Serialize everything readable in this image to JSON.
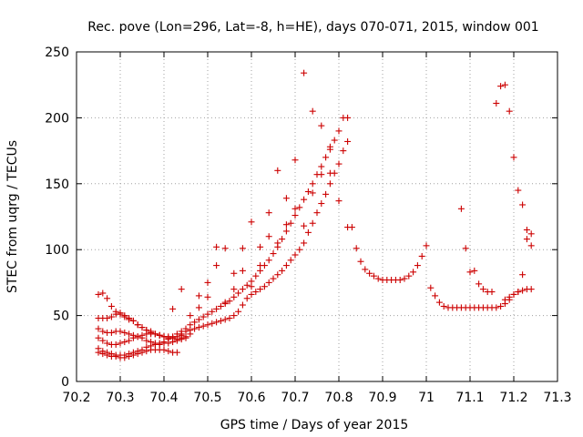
{
  "chart_data": {
    "type": "scatter",
    "title": "Rec. pove (Lon=296, Lat=-8, h=HE), days 070-071, 2015, window 001",
    "xlabel": "GPS time / Days of year 2015",
    "ylabel": "STEC from uqrg / TECUs",
    "xlim": [
      70.2,
      71.3
    ],
    "ylim": [
      0,
      250
    ],
    "xticks": [
      "70.2",
      "70.3",
      "70.4",
      "70.5",
      "70.6",
      "70.7",
      "70.8",
      "70.9",
      "71",
      "71.1",
      "71.2",
      "71.3"
    ],
    "yticks": [
      "0",
      "50",
      "100",
      "150",
      "200",
      "250"
    ],
    "grid": true,
    "marker": "plus",
    "color": "#cc0000",
    "series": [
      {
        "x": [
          70.25,
          70.26,
          70.27,
          70.28,
          70.29,
          70.3,
          70.31,
          70.32,
          70.33,
          70.34,
          70.35,
          70.36,
          70.37,
          70.38,
          70.39,
          70.4,
          70.41,
          70.42,
          70.43,
          70.44
        ],
        "y": [
          66,
          67,
          63,
          57,
          53,
          51,
          49,
          47,
          46,
          43,
          41,
          39,
          37,
          36,
          35,
          34,
          33,
          33,
          34,
          35
        ]
      },
      {
        "x": [
          70.25,
          70.26,
          70.27,
          70.28,
          70.29,
          70.3,
          70.31,
          70.32,
          70.33,
          70.34,
          70.35,
          70.36,
          70.37,
          70.38,
          70.39,
          70.4,
          70.41,
          70.42,
          70.43,
          70.44,
          70.45,
          70.46
        ],
        "y": [
          25,
          23,
          22,
          21,
          20,
          20,
          20,
          21,
          22,
          23,
          24,
          26,
          27,
          28,
          28,
          29,
          29,
          30,
          31,
          33,
          34,
          36
        ]
      },
      {
        "x": [
          70.25,
          70.26,
          70.27,
          70.28,
          70.29,
          70.3,
          70.31,
          70.32,
          70.33,
          70.34,
          70.35,
          70.36,
          70.37,
          70.38,
          70.39,
          70.4,
          70.41,
          70.42,
          70.43,
          70.44,
          70.45
        ],
        "y": [
          33,
          31,
          29,
          28,
          28,
          29,
          30,
          31,
          33,
          34,
          35,
          36,
          36,
          36,
          35,
          34,
          34,
          33,
          32,
          32,
          33
        ]
      },
      {
        "x": [
          70.25,
          70.26,
          70.27,
          70.28,
          70.29,
          70.3,
          70.31,
          70.32,
          70.33,
          70.34,
          70.35,
          70.36,
          70.37,
          70.38,
          70.39,
          70.4
        ],
        "y": [
          48,
          48,
          48,
          49,
          51,
          52,
          50,
          48,
          46,
          43,
          41,
          39,
          38,
          36,
          35,
          34
        ]
      },
      {
        "x": [
          70.25,
          70.26,
          70.27,
          70.28,
          70.29,
          70.3,
          70.31,
          70.32,
          70.33,
          70.34,
          70.35,
          70.36,
          70.37,
          70.38,
          70.39
        ],
        "y": [
          40,
          38,
          37,
          37,
          38,
          38,
          37,
          36,
          35,
          34,
          33,
          31,
          30,
          29,
          29
        ]
      },
      {
        "x": [
          70.25,
          70.26,
          70.27,
          70.28,
          70.29,
          70.3,
          70.31,
          70.32,
          70.33,
          70.34,
          70.35,
          70.36,
          70.37,
          70.38,
          70.39,
          70.4,
          70.41,
          70.42,
          70.43
        ],
        "y": [
          22,
          21,
          20,
          19,
          19,
          18,
          18,
          19,
          20,
          21,
          22,
          23,
          24,
          24,
          24,
          24,
          23,
          22,
          22
        ]
      },
      {
        "x": [
          70.44,
          70.45,
          70.46,
          70.47,
          70.48,
          70.49,
          70.5,
          70.51,
          70.52,
          70.53,
          70.54,
          70.55,
          70.56,
          70.57,
          70.58,
          70.59,
          70.6,
          70.61,
          70.62,
          70.63,
          70.64,
          70.65,
          70.66,
          70.67,
          70.68,
          70.69,
          70.7,
          70.71,
          70.72,
          70.73,
          70.74,
          70.75,
          70.76,
          70.77,
          70.78,
          70.79,
          70.8,
          70.81,
          70.82
        ],
        "y": [
          36,
          38,
          39,
          40,
          41,
          42,
          43,
          44,
          45,
          46,
          47,
          48,
          50,
          53,
          58,
          63,
          66,
          68,
          70,
          72,
          75,
          78,
          81,
          84,
          88,
          92,
          96,
          100,
          105,
          113,
          120,
          128,
          135,
          142,
          150,
          158,
          165,
          175,
          182
        ]
      },
      {
        "x": [
          70.4,
          70.41,
          70.42,
          70.43,
          70.44,
          70.45,
          70.46,
          70.47,
          70.48,
          70.49,
          70.5,
          70.51,
          70.52,
          70.53,
          70.54,
          70.55,
          70.56,
          70.57,
          70.58,
          70.59,
          70.6,
          70.61,
          70.62,
          70.63,
          70.64,
          70.65,
          70.66,
          70.67,
          70.68,
          70.69,
          70.7,
          70.71,
          70.72,
          70.73,
          70.74,
          70.75,
          70.76,
          70.77,
          70.78,
          70.79,
          70.8,
          70.81
        ],
        "y": [
          30,
          32,
          34,
          36,
          38,
          40,
          43,
          45,
          47,
          49,
          51,
          53,
          55,
          57,
          59,
          61,
          64,
          67,
          70,
          73,
          76,
          80,
          84,
          88,
          92,
          97,
          102,
          108,
          114,
          120,
          126,
          132,
          138,
          144,
          150,
          157,
          163,
          170,
          176,
          183,
          190,
          200
        ]
      },
      {
        "x": [
          70.42,
          70.44,
          70.46,
          70.48,
          70.5,
          70.52,
          70.54,
          70.56,
          70.58,
          70.6,
          70.62,
          70.64,
          70.66,
          70.68,
          70.7,
          70.72,
          70.74,
          70.76,
          70.78
        ],
        "y": [
          55,
          70,
          50,
          56,
          75,
          102,
          101,
          82,
          101,
          121,
          102,
          128,
          105,
          139,
          168,
          234,
          205,
          157,
          158
        ]
      },
      {
        "x": [
          70.48,
          70.5,
          70.52,
          70.54,
          70.56,
          70.58,
          70.6,
          70.62,
          70.64,
          70.66,
          70.68,
          70.7,
          70.72,
          70.74,
          70.76,
          70.78,
          70.8,
          70.82
        ],
        "y": [
          65,
          64,
          88,
          60,
          70,
          84,
          72,
          88,
          110,
          160,
          119,
          131,
          118,
          143,
          194,
          178,
          137,
          117
        ]
      },
      {
        "x": [
          70.82,
          70.83,
          70.84,
          70.85,
          70.86,
          70.87,
          70.88,
          70.89,
          70.9,
          70.91,
          70.92,
          70.93,
          70.94,
          70.95,
          70.96,
          70.97,
          70.98,
          70.99,
          71.0,
          71.01,
          71.02,
          71.03,
          71.04,
          71.05,
          71.06,
          71.07,
          71.08,
          71.09,
          71.1,
          71.11,
          71.12,
          71.13,
          71.14,
          71.15,
          71.16,
          71.17,
          71.18,
          71.19,
          71.2,
          71.21,
          71.22,
          71.23,
          71.24
        ],
        "y": [
          200,
          117,
          101,
          91,
          85,
          82,
          80,
          78,
          77,
          77,
          77,
          77,
          77,
          78,
          80,
          83,
          88,
          95,
          103,
          71,
          65,
          60,
          57,
          56,
          56,
          56,
          56,
          56,
          56,
          56,
          56,
          56,
          56,
          56,
          56,
          57,
          59,
          62,
          66,
          68,
          69,
          70,
          70
        ]
      },
      {
        "x": [
          71.08,
          71.09,
          71.1,
          71.11,
          71.12,
          71.13,
          71.14,
          71.15,
          71.16,
          71.17,
          71.18,
          71.19,
          71.2,
          71.21,
          71.22,
          71.23,
          71.24
        ],
        "y": [
          131,
          101,
          83,
          84,
          74,
          70,
          68,
          68,
          211,
          224,
          225,
          205,
          170,
          145,
          134,
          115,
          103
        ]
      },
      {
        "x": [
          71.18,
          71.19,
          71.2,
          71.21,
          71.22,
          71.23,
          71.24
        ],
        "y": [
          62,
          64,
          66,
          68,
          81,
          108,
          112
        ]
      }
    ]
  }
}
